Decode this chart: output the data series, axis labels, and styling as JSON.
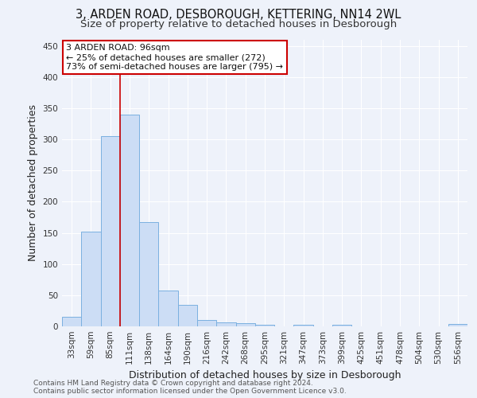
{
  "title": "3, ARDEN ROAD, DESBOROUGH, KETTERING, NN14 2WL",
  "subtitle": "Size of property relative to detached houses in Desborough",
  "xlabel": "Distribution of detached houses by size in Desborough",
  "ylabel": "Number of detached properties",
  "bin_labels": [
    "33sqm",
    "59sqm",
    "85sqm",
    "111sqm",
    "138sqm",
    "164sqm",
    "190sqm",
    "216sqm",
    "242sqm",
    "268sqm",
    "295sqm",
    "321sqm",
    "347sqm",
    "373sqm",
    "399sqm",
    "425sqm",
    "451sqm",
    "478sqm",
    "504sqm",
    "530sqm",
    "556sqm"
  ],
  "bar_heights": [
    15,
    152,
    305,
    340,
    167,
    57,
    35,
    10,
    7,
    5,
    3,
    0,
    2,
    0,
    3,
    0,
    0,
    0,
    0,
    0,
    4
  ],
  "bar_color": "#ccddf5",
  "bar_edge_color": "#7ab0e0",
  "background_color": "#eef2fa",
  "grid_color": "#ffffff",
  "vline_x": 2.5,
  "vline_color": "#cc0000",
  "annotation_text": "3 ARDEN ROAD: 96sqm\n← 25% of detached houses are smaller (272)\n73% of semi-detached houses are larger (795) →",
  "annotation_box_color": "#ffffff",
  "annotation_box_edge_color": "#cc0000",
  "footer_text": "Contains HM Land Registry data © Crown copyright and database right 2024.\nContains public sector information licensed under the Open Government Licence v3.0.",
  "ylim": [
    0,
    460
  ],
  "yticks": [
    0,
    50,
    100,
    150,
    200,
    250,
    300,
    350,
    400,
    450
  ],
  "title_fontsize": 10.5,
  "subtitle_fontsize": 9.5,
  "axis_label_fontsize": 9,
  "tick_fontsize": 7.5,
  "footer_fontsize": 6.5,
  "annotation_fontsize": 8
}
